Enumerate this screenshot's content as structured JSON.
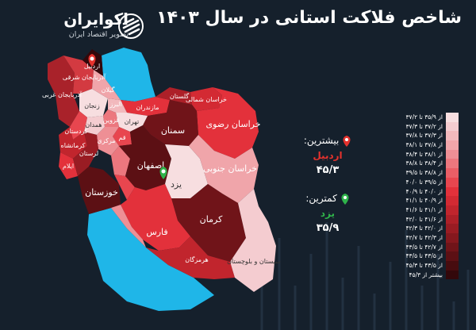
{
  "title": "شاخص فلاکت استانی در سال ۱۴۰۳",
  "brand": {
    "name": "اکوایران",
    "tagline": "تصویر اقتصاد ایران",
    "logo_icon": "ecoiran-logo-icon"
  },
  "colors": {
    "background": "#15202c",
    "water": "#1fb6e8",
    "max_marker": "#e5322d",
    "min_marker": "#2fb34a"
  },
  "highlights": {
    "max": {
      "heading": "بیشترین:",
      "province": "اردبیل",
      "value": "۴۵/۳",
      "icon": "map-pin-icon"
    },
    "min": {
      "heading": "کمترین:",
      "province": "یزد",
      "value": "۳۵/۹",
      "icon": "map-pin-icon"
    }
  },
  "legend": [
    {
      "label": "از ۳۵/۹ تا ۳۷/۲",
      "color": "#f7dee0"
    },
    {
      "label": "از ۳۷/۲ تا ۳۷/۳",
      "color": "#f4ccd0"
    },
    {
      "label": "از ۳۷/۳ تا ۳۷/۸",
      "color": "#f2b9bd"
    },
    {
      "label": "از ۳۷/۸ تا ۳۸/۱",
      "color": "#f0a5aa"
    },
    {
      "label": "از ۳۸/۱ تا ۳۸/۴",
      "color": "#ee8f95"
    },
    {
      "label": "از ۳۸/۴ تا ۳۸/۸",
      "color": "#ec777e"
    },
    {
      "label": "از ۳۸/۸ تا ۳۹/۵",
      "color": "#ea5e66"
    },
    {
      "label": "از ۳۹/۵ تا ۴۰/۰",
      "color": "#e8464f"
    },
    {
      "label": "از ۴۰/۰ تا ۴۰/۹",
      "color": "#e3313b"
    },
    {
      "label": "از ۴۰/۹ تا ۴۱/۱",
      "color": "#d32a33"
    },
    {
      "label": "از ۴۱/۱ تا ۴۱/۶",
      "color": "#c1252d"
    },
    {
      "label": "از ۴۱/۶ تا ۴۲/۰",
      "color": "#ad2028"
    },
    {
      "label": "از ۴۲/۰ تا ۴۲/۳",
      "color": "#991c23"
    },
    {
      "label": "از ۴۲/۳ تا ۴۲/۷",
      "color": "#85181e"
    },
    {
      "label": "از ۴۲/۷ تا ۴۳/۵",
      "color": "#701419"
    },
    {
      "label": "از ۴۳/۵ تا ۴۳/۵",
      "color": "#5c1014"
    },
    {
      "label": "از ۴۳/۵ تا ۴۵/۳",
      "color": "#470c0f"
    },
    {
      "label": "بیشتر از ۴۵/۳",
      "color": "#33080b"
    }
  ],
  "provinces": {
    "ardabil": "اردبیل",
    "east_azarbaijan": "آذربایجان شرقی",
    "west_azarbaijan": "آذربایجان غربی",
    "zanjan": "زنجان",
    "gilan": "گیلان",
    "mazandaran": "مازندران",
    "golestan": "گلستان",
    "north_khorasan": "خراسان شمالی",
    "razavi_khorasan": "خراسان رضوی",
    "south_khorasan": "خراسان جنوبی",
    "semnan": "سمنان",
    "tehran": "تهران",
    "alborz": "البرز",
    "qazvin": "قزوین",
    "qom": "قم",
    "markazi": "مرکزی",
    "hamedan": "همدان",
    "kurdistan": "کردستان",
    "kermanshah": "کرمانشاه",
    "ilam": "ایلام",
    "lorestan": "لرستان",
    "khuzestan": "خوزستان",
    "isfahan": "اصفهان",
    "yazd": "یزد",
    "kerman": "کرمان",
    "fars": "فارس",
    "bushehr": "بوشهر",
    "hormozgan": "هرمزگان",
    "sistan": "سیستان و بلوچستان",
    "kohgiluyeh": "کهگیلویه",
    "chaharmahal": "چهارمحال"
  }
}
